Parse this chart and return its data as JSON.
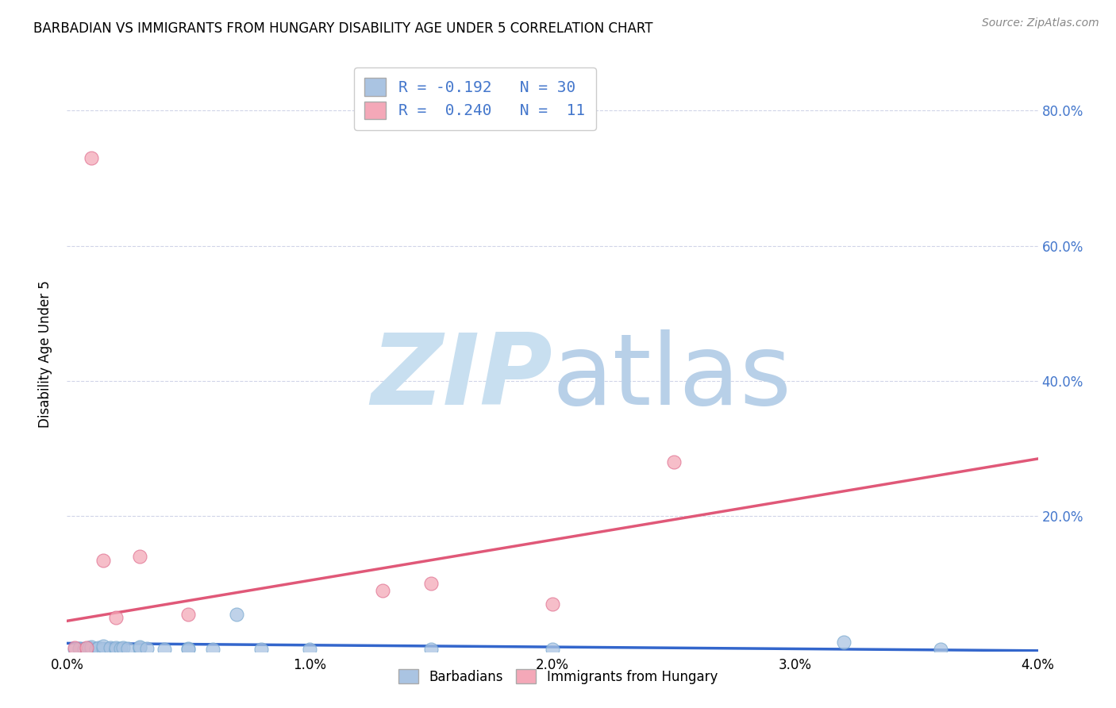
{
  "title": "BARBADIAN VS IMMIGRANTS FROM HUNGARY DISABILITY AGE UNDER 5 CORRELATION CHART",
  "source": "Source: ZipAtlas.com",
  "ylabel": "Disability Age Under 5",
  "xlim": [
    0.0,
    0.04
  ],
  "ylim": [
    0.0,
    0.88
  ],
  "xtick_labels": [
    "0.0%",
    "1.0%",
    "2.0%",
    "3.0%",
    "4.0%"
  ],
  "ytick_labels_right": [
    "20.0%",
    "40.0%",
    "60.0%",
    "80.0%"
  ],
  "R_barbadian": -0.192,
  "N_barbadian": 30,
  "R_hungary": 0.24,
  "N_hungary": 11,
  "barbadian_color": "#aac4e2",
  "hungary_color": "#f4a8b8",
  "trendline_barbadian_color": "#3366cc",
  "trendline_hungary_color": "#e05878",
  "legend_text_color": "#4477cc",
  "watermark_zip_color": "#c8dff0",
  "watermark_atlas_color": "#b8d0e8",
  "background_color": "#ffffff",
  "grid_color": "#d0d4e8",
  "barbadian_x": [
    0.0003,
    0.0005,
    0.0007,
    0.0009,
    0.001,
    0.001,
    0.0012,
    0.0013,
    0.0015,
    0.0015,
    0.0018,
    0.002,
    0.002,
    0.0022,
    0.0023,
    0.0025,
    0.003,
    0.003,
    0.0033,
    0.004,
    0.005,
    0.005,
    0.006,
    0.007,
    0.008,
    0.01,
    0.015,
    0.02,
    0.032,
    0.036
  ],
  "barbadian_y": [
    0.003,
    0.004,
    0.003,
    0.005,
    0.003,
    0.007,
    0.003,
    0.005,
    0.004,
    0.008,
    0.005,
    0.003,
    0.006,
    0.004,
    0.005,
    0.004,
    0.005,
    0.007,
    0.004,
    0.003,
    0.004,
    0.003,
    0.003,
    0.055,
    0.003,
    0.003,
    0.003,
    0.003,
    0.014,
    0.003
  ],
  "hungary_x": [
    0.0003,
    0.0008,
    0.001,
    0.0015,
    0.002,
    0.003,
    0.005,
    0.013,
    0.015,
    0.02,
    0.025
  ],
  "hungary_y": [
    0.005,
    0.005,
    0.73,
    0.135,
    0.05,
    0.14,
    0.055,
    0.09,
    0.1,
    0.07,
    0.28
  ],
  "b_trendline_x": [
    0.0,
    0.04
  ],
  "b_trendline_y": [
    0.012,
    0.001
  ],
  "h_trendline_x": [
    0.0,
    0.04
  ],
  "h_trendline_y": [
    0.045,
    0.285
  ]
}
